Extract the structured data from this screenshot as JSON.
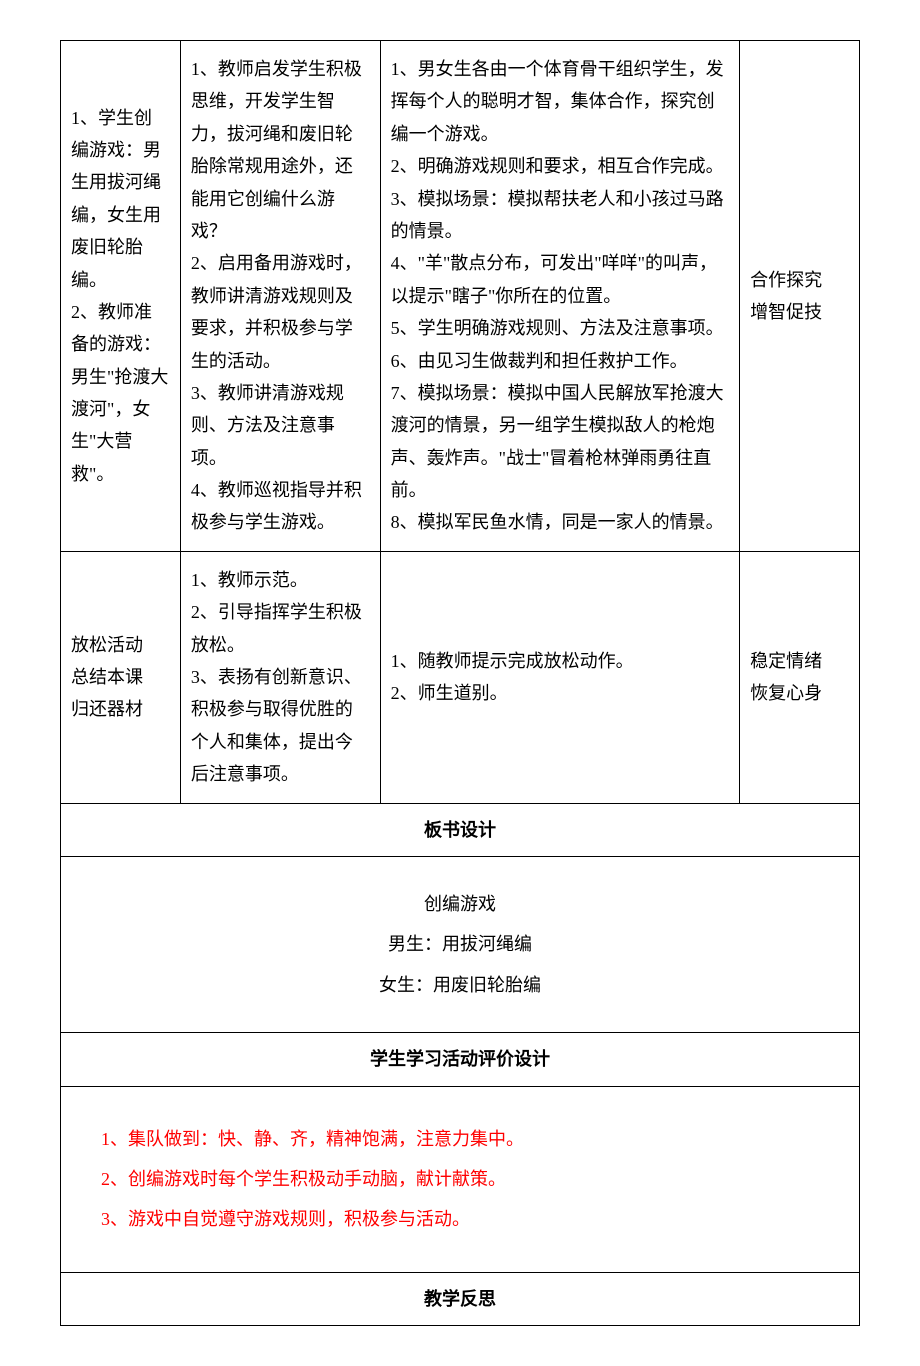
{
  "row1": {
    "col1": "1、学生创编游戏：男生用拔河绳编，女生用废旧轮胎编。\n2、教师准备的游戏：男生\"抢渡大渡河\"，女生\"大营救\"。",
    "col2": "1、教师启发学生积极思维，开发学生智力，拔河绳和废旧轮胎除常规用途外，还能用它创编什么游戏？\n2、启用备用游戏时，教师讲清游戏规则及要求，并积极参与学生的活动。\n3、教师讲清游戏规则、方法及注意事项。\n4、教师巡视指导并积极参与学生游戏。",
    "col3": "1、男女生各由一个体育骨干组织学生，发挥每个人的聪明才智，集体合作，探究创编一个游戏。\n2、明确游戏规则和要求，相互合作完成。\n3、模拟场景：模拟帮扶老人和小孩过马路的情景。\n4、\"羊\"散点分布，可发出\"咩咩\"的叫声，以提示\"瞎子\"你所在的位置。\n5、学生明确游戏规则、方法及注意事项。\n6、由见习生做裁判和担任救护工作。\n7、模拟场景：模拟中国人民解放军抢渡大渡河的情景，另一组学生模拟敌人的枪炮声、轰炸声。\"战士\"冒着枪林弹雨勇往直前。\n8、模拟军民鱼水情，同是一家人的情景。",
    "col4": "合作探究\n增智促技"
  },
  "row2": {
    "col1": "放松活动\n总结本课\n归还器材",
    "col2": "1、教师示范。\n2、引导指挥学生积极放松。\n3、表扬有创新意识、积极参与取得优胜的个人和集体，提出今后注意事项。",
    "col3": "1、随教师提示完成放松动作。\n2、师生道别。",
    "col4": "稳定情绪\n恢复心身"
  },
  "sections": {
    "board_design": "板书设计",
    "board_content": {
      "line1": "创编游戏",
      "line2": "男生：用拔河绳编",
      "line3": "女生：用废旧轮胎编"
    },
    "eval_design": "学生学习活动评价设计",
    "eval_content": {
      "line1": "1、集队做到：快、静、齐，精神饱满，注意力集中。",
      "line2": "2、创编游戏时每个学生积极动手动脑，献计献策。",
      "line3": "3、游戏中自觉遵守游戏规则，积极参与活动。"
    },
    "reflection": "教学反思"
  },
  "colors": {
    "text": "#000000",
    "border": "#000000",
    "red": "#ff0000",
    "background": "#ffffff"
  }
}
